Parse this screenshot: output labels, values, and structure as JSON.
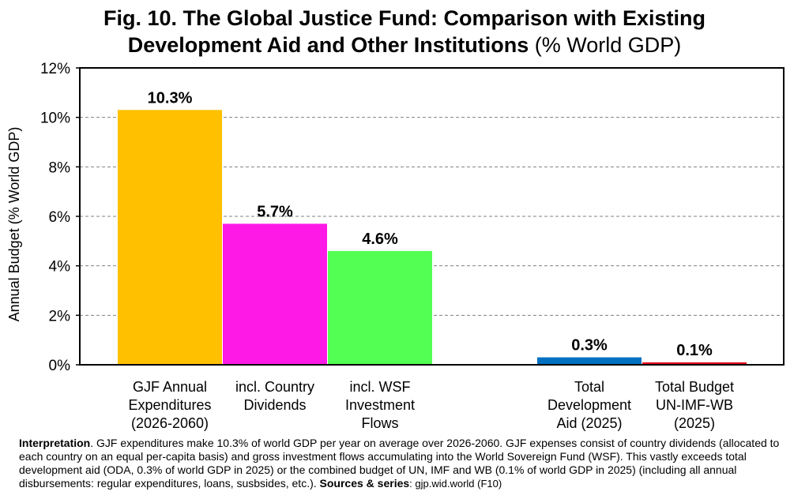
{
  "title": {
    "bold_line1": "Fig. 10. The Global Justice Fund: Comparison with Existing",
    "bold_line2": "Development Aid and Other Institutions",
    "suffix": "(% World GDP)"
  },
  "chart_data": {
    "type": "bar",
    "ylabel": "Annual Budget (% World GDP)",
    "ylim": [
      0,
      12
    ],
    "yticks": [
      "0%",
      "2%",
      "4%",
      "6%",
      "8%",
      "10%",
      "12%"
    ],
    "grid": true,
    "bars": [
      {
        "category": [
          "GJF Annual",
          "Expenditures",
          "(2026-2060)"
        ],
        "value": 10.3,
        "label": "10.3%",
        "color": "#FFC000"
      },
      {
        "category": [
          "incl. Country",
          "Dividends"
        ],
        "value": 5.7,
        "label": "5.7%",
        "color": "#FF19E6"
      },
      {
        "category": [
          "incl. WSF",
          "Investment",
          "Flows"
        ],
        "value": 4.6,
        "label": "4.6%",
        "color": "#52FF52"
      },
      {
        "category": [
          "Total",
          "Development",
          "Aid (2025)"
        ],
        "value": 0.3,
        "label": "0.3%",
        "color": "#0070C0"
      },
      {
        "category": [
          "Total Budget",
          "UN-IMF-WB",
          "(2025)"
        ],
        "value": 0.1,
        "label": "0.1%",
        "color": "#E8101E"
      }
    ]
  },
  "note": {
    "lead": "Interpretation",
    "body": ". GJF expenditures make 10.3% of world GDP per year on average over 2026-2060. GJF expenses consist of country dividends (allocated to each country on an equal per-capita basis) and gross investment flows accumulating into the World Sovereign Fund (WSF). This vastly exceeds total development aid (ODA, 0.3% of world GDP in 2025) or the combined budget of UN, IMF and WB (0.1% of world GDP in 2025) (including all annual disbursements: regular expenditures, loans, susbsides, etc.). ",
    "sources_label": "Sources & series",
    "sources": ": gjp.wid.world (F10)"
  }
}
